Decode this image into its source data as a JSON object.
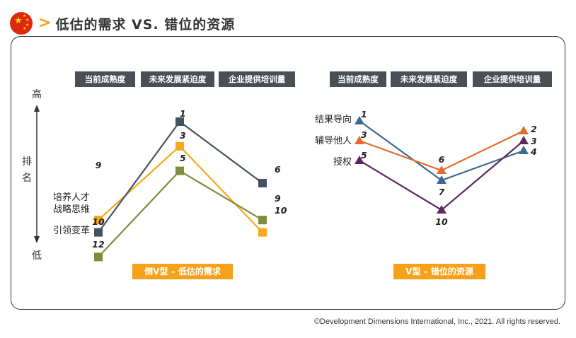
{
  "header": {
    "flag_icon": "china-flag-icon",
    "chevron_icon": "chevron-right-icon",
    "title": "低估的需求 VS. 错位的资源"
  },
  "copyright": "©Development Dimensions International, Inc., 2021. All rights reserved.",
  "colors": {
    "header_box": "#4a4f57",
    "caption_box": "#f5a11a",
    "dark_slate": "#46525f",
    "orange_yellow": "#f7a81b",
    "olive": "#7e8c3c",
    "blue": "#3a6a93",
    "orange": "#e36b2c",
    "purple": "#5a2a5e"
  },
  "axis": {
    "high": "高",
    "low": "低",
    "label_1": "排",
    "label_2": "名"
  },
  "chart_data": [
    {
      "type": "line",
      "title": "倒V型 – 低估的需求",
      "categories": [
        "当前成熟度",
        "未来发展紧迫度",
        "企业提供培训量"
      ],
      "y_meaning": "rank (1 = highest)",
      "ylim": [
        1,
        12
      ],
      "series": [
        {
          "name": "培养人才",
          "values": [
            9,
            3,
            10
          ],
          "color": "#f7a81b",
          "marker": "square"
        },
        {
          "name": "战略思维",
          "values": [
            10,
            1,
            6
          ],
          "color": "#46525f",
          "marker": "square"
        },
        {
          "name": "引领变革",
          "values": [
            12,
            5,
            9
          ],
          "color": "#7e8c3c",
          "marker": "square"
        }
      ]
    },
    {
      "type": "line",
      "title": "V型 – 错位的资源",
      "categories": [
        "当前成熟度",
        "未来发展紧迫度",
        "企业提供培训量"
      ],
      "y_meaning": "rank (1 = highest)",
      "ylim": [
        1,
        10
      ],
      "series": [
        {
          "name": "结果导向",
          "values": [
            1,
            7,
            4
          ],
          "color": "#3a6a93",
          "marker": "triangle"
        },
        {
          "name": "辅导他人",
          "values": [
            3,
            6,
            2
          ],
          "color": "#e36b2c",
          "marker": "triangle"
        },
        {
          "name": "授权",
          "values": [
            5,
            10,
            3
          ],
          "color": "#5a2a5e",
          "marker": "triangle"
        }
      ]
    }
  ]
}
